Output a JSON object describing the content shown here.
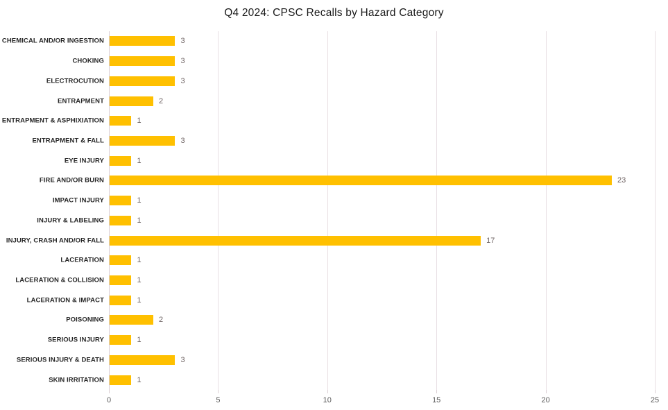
{
  "chart_data": {
    "type": "bar",
    "orientation": "horizontal",
    "title": "Q4 2024: CPSC Recalls by Hazard Category",
    "categories": [
      "CHEMICAL AND/OR INGESTION",
      "CHOKING",
      "ELECTROCUTION",
      "ENTRAPMENT",
      "ENTRAPMENT & ASPHIXIATION",
      "ENTRAPMENT & FALL",
      "EYE INJURY",
      "FIRE AND/OR BURN",
      "IMPACT INJURY",
      "INJURY & LABELING",
      "INJURY, CRASH AND/OR FALL",
      "LACERATION",
      "LACERATION & COLLISION",
      "LACERATION & IMPACT",
      "POISONING",
      "SERIOUS INJURY",
      "SERIOUS INJURY & DEATH",
      "SKIN IRRITATION"
    ],
    "values": [
      3,
      3,
      3,
      2,
      1,
      3,
      1,
      23,
      1,
      1,
      17,
      1,
      1,
      1,
      2,
      1,
      3,
      1
    ],
    "xlabel": "",
    "ylabel": "",
    "xlim": [
      0,
      25
    ],
    "x_ticks": [
      0,
      5,
      10,
      15,
      20,
      25
    ],
    "grid": true,
    "legend_position": "none",
    "data_labels": true,
    "colors": {
      "bar": "#FFC000",
      "gridline": "#e8dfe3",
      "axis_line": "#dbcfd4",
      "value_label": "#6e6363",
      "tick_label": "#595959",
      "category_label": "#262626",
      "title": "#1a1a1a"
    }
  }
}
